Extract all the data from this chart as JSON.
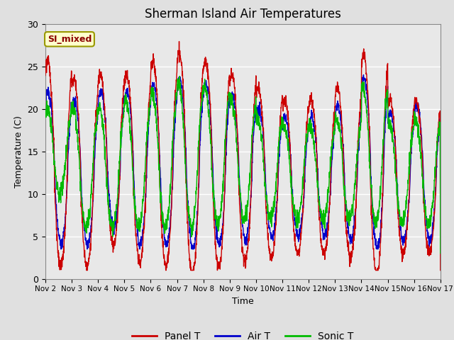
{
  "title": "Sherman Island Air Temperatures",
  "xlabel": "Time",
  "ylabel": "Temperature (C)",
  "annotation_text": "SI_mixed",
  "annotation_color": "#8B0000",
  "annotation_bg": "#FFFFCC",
  "annotation_border": "#999900",
  "ylim": [
    0,
    30
  ],
  "xtick_labels": [
    "Nov 2",
    "Nov 3",
    "Nov 4",
    "Nov 5",
    "Nov 6",
    "Nov 7",
    "Nov 8",
    "Nov 9",
    "Nov 10",
    "Nov 11",
    "Nov 12",
    "Nov 13",
    "Nov 14",
    "Nov 15",
    "Nov 16",
    "Nov 17"
  ],
  "ytick_labels": [
    0,
    5,
    10,
    15,
    20,
    25,
    30
  ],
  "panel_t_color": "#CC0000",
  "air_t_color": "#0000CC",
  "sonic_t_color": "#00BB00",
  "linewidth": 1.0,
  "bg_color": "#E8E8E8",
  "fig_bg_color": "#E0E0E0",
  "legend_labels": [
    "Panel T",
    "Air T",
    "Sonic T"
  ],
  "grid_color": "#FFFFFF",
  "grid_linewidth": 1.0
}
